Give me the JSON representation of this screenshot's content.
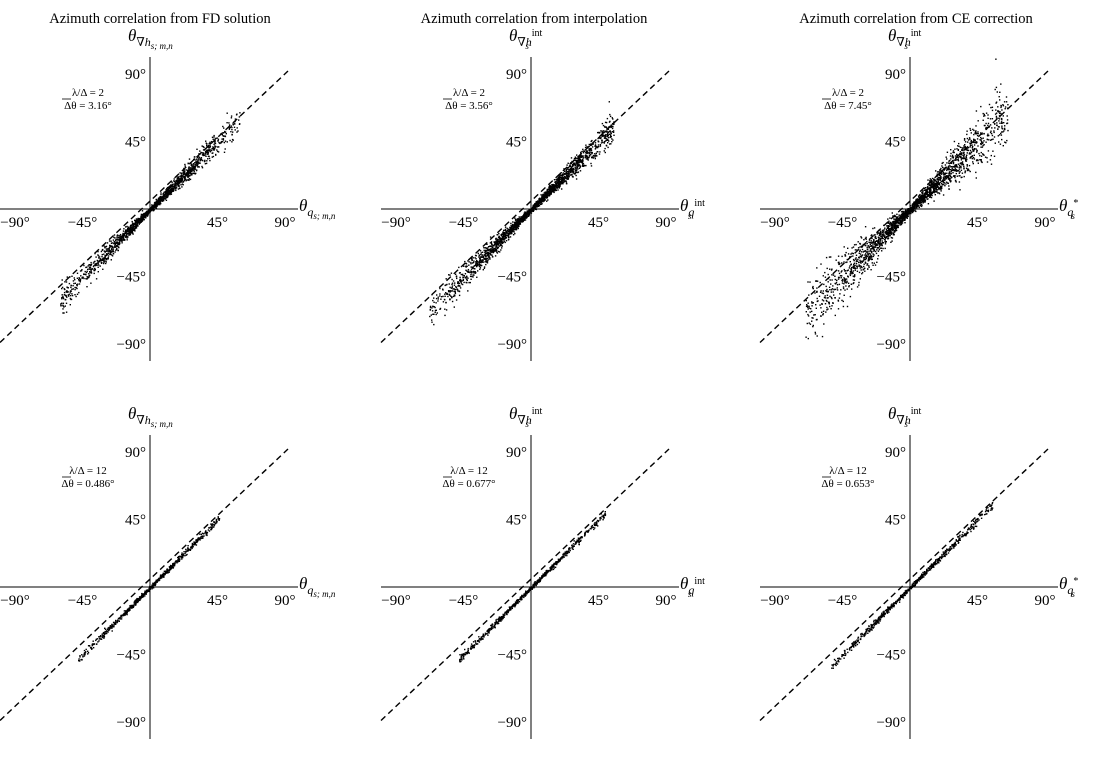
{
  "column_titles": [
    "Azimuth correlation from FD solution",
    "Azimuth correlation from interpolation",
    "Azimuth correlation from CE correction"
  ],
  "tick_labels": {
    "x": [
      "−90°",
      "−45°",
      "45°",
      "90°"
    ],
    "y": [
      "90°",
      "45°",
      "−45°",
      "−90°"
    ]
  },
  "axis_labels": {
    "fd": {
      "x_symbol": "θ",
      "x_sub": "q",
      "x_subsub": "s; m,n",
      "x_sup": "",
      "y_symbol": "θ",
      "y_sub": "∇h",
      "y_subsub": "s; m,n",
      "y_sup": ""
    },
    "interp": {
      "x_symbol": "θ",
      "x_sub": "q",
      "x_subsub": "s",
      "x_sup": "int",
      "y_symbol": "θ",
      "y_sub": "∇h",
      "y_subsub": "s",
      "y_sup": "int"
    },
    "ce": {
      "x_symbol": "θ",
      "x_sub": "q",
      "x_subsub": "s",
      "x_sup": "*",
      "y_symbol": "θ",
      "y_sub": "∇h",
      "y_subsub": "s",
      "y_sup": "int"
    }
  },
  "chart_data": [
    {
      "type": "scatter",
      "method": "fd",
      "row": 0,
      "col": 0,
      "title": "Azimuth correlation from FD solution",
      "annotation_line1": "λ/Δ = 2",
      "annotation_line2": "Δθ = 3.16°",
      "xlim": [
        -90,
        90
      ],
      "ylim": [
        -90,
        90
      ],
      "identity_line": true,
      "points": {
        "count": 1600,
        "range": [
          -60,
          60
        ],
        "spread": 0.075,
        "center_density": 0.9
      }
    },
    {
      "type": "scatter",
      "method": "interp",
      "row": 0,
      "col": 1,
      "title": "Azimuth correlation from interpolation",
      "annotation_line1": "λ/Δ = 2",
      "annotation_line2": "Δθ = 3.56°",
      "xlim": [
        -90,
        90
      ],
      "ylim": [
        -90,
        90
      ],
      "identity_line": true,
      "points": {
        "count": 2000,
        "range": [
          -68,
          55
        ],
        "spread": 0.075,
        "center_density": 0.9
      }
    },
    {
      "type": "scatter",
      "method": "ce",
      "row": 0,
      "col": 2,
      "title": "Azimuth correlation from CE correction",
      "annotation_line1": "λ/Δ = 2",
      "annotation_line2": "Δθ = 7.45°",
      "xlim": [
        -90,
        90
      ],
      "ylim": [
        -90,
        90
      ],
      "identity_line": true,
      "points": {
        "count": 2100,
        "range": [
          -70,
          65
        ],
        "spread": 0.16,
        "center_density": 0.9
      }
    },
    {
      "type": "scatter",
      "method": "fd",
      "row": 1,
      "col": 0,
      "annotation_line1": "λ/Δ = 12",
      "annotation_line2": "Δθ = 0.486°",
      "xlim": [
        -90,
        90
      ],
      "ylim": [
        -90,
        90
      ],
      "identity_line": true,
      "points": {
        "count": 700,
        "range": [
          -48,
          46
        ],
        "spread": 0.012,
        "center_density": 0.6
      }
    },
    {
      "type": "scatter",
      "method": "interp",
      "row": 1,
      "col": 1,
      "annotation_line1": "λ/Δ = 12",
      "annotation_line2": "Δθ = 0.677°",
      "xlim": [
        -90,
        90
      ],
      "ylim": [
        -90,
        90
      ],
      "identity_line": true,
      "points": {
        "count": 700,
        "range": [
          -48,
          50
        ],
        "spread": 0.014,
        "center_density": 0.6
      }
    },
    {
      "type": "scatter",
      "method": "ce",
      "row": 1,
      "col": 2,
      "annotation_line1": "λ/Δ = 12",
      "annotation_line2": "Δθ = 0.653°",
      "xlim": [
        -90,
        90
      ],
      "ylim": [
        -90,
        90
      ],
      "identity_line": true,
      "points": {
        "count": 700,
        "range": [
          -53,
          55
        ],
        "spread": 0.014,
        "center_density": 0.6
      }
    }
  ]
}
